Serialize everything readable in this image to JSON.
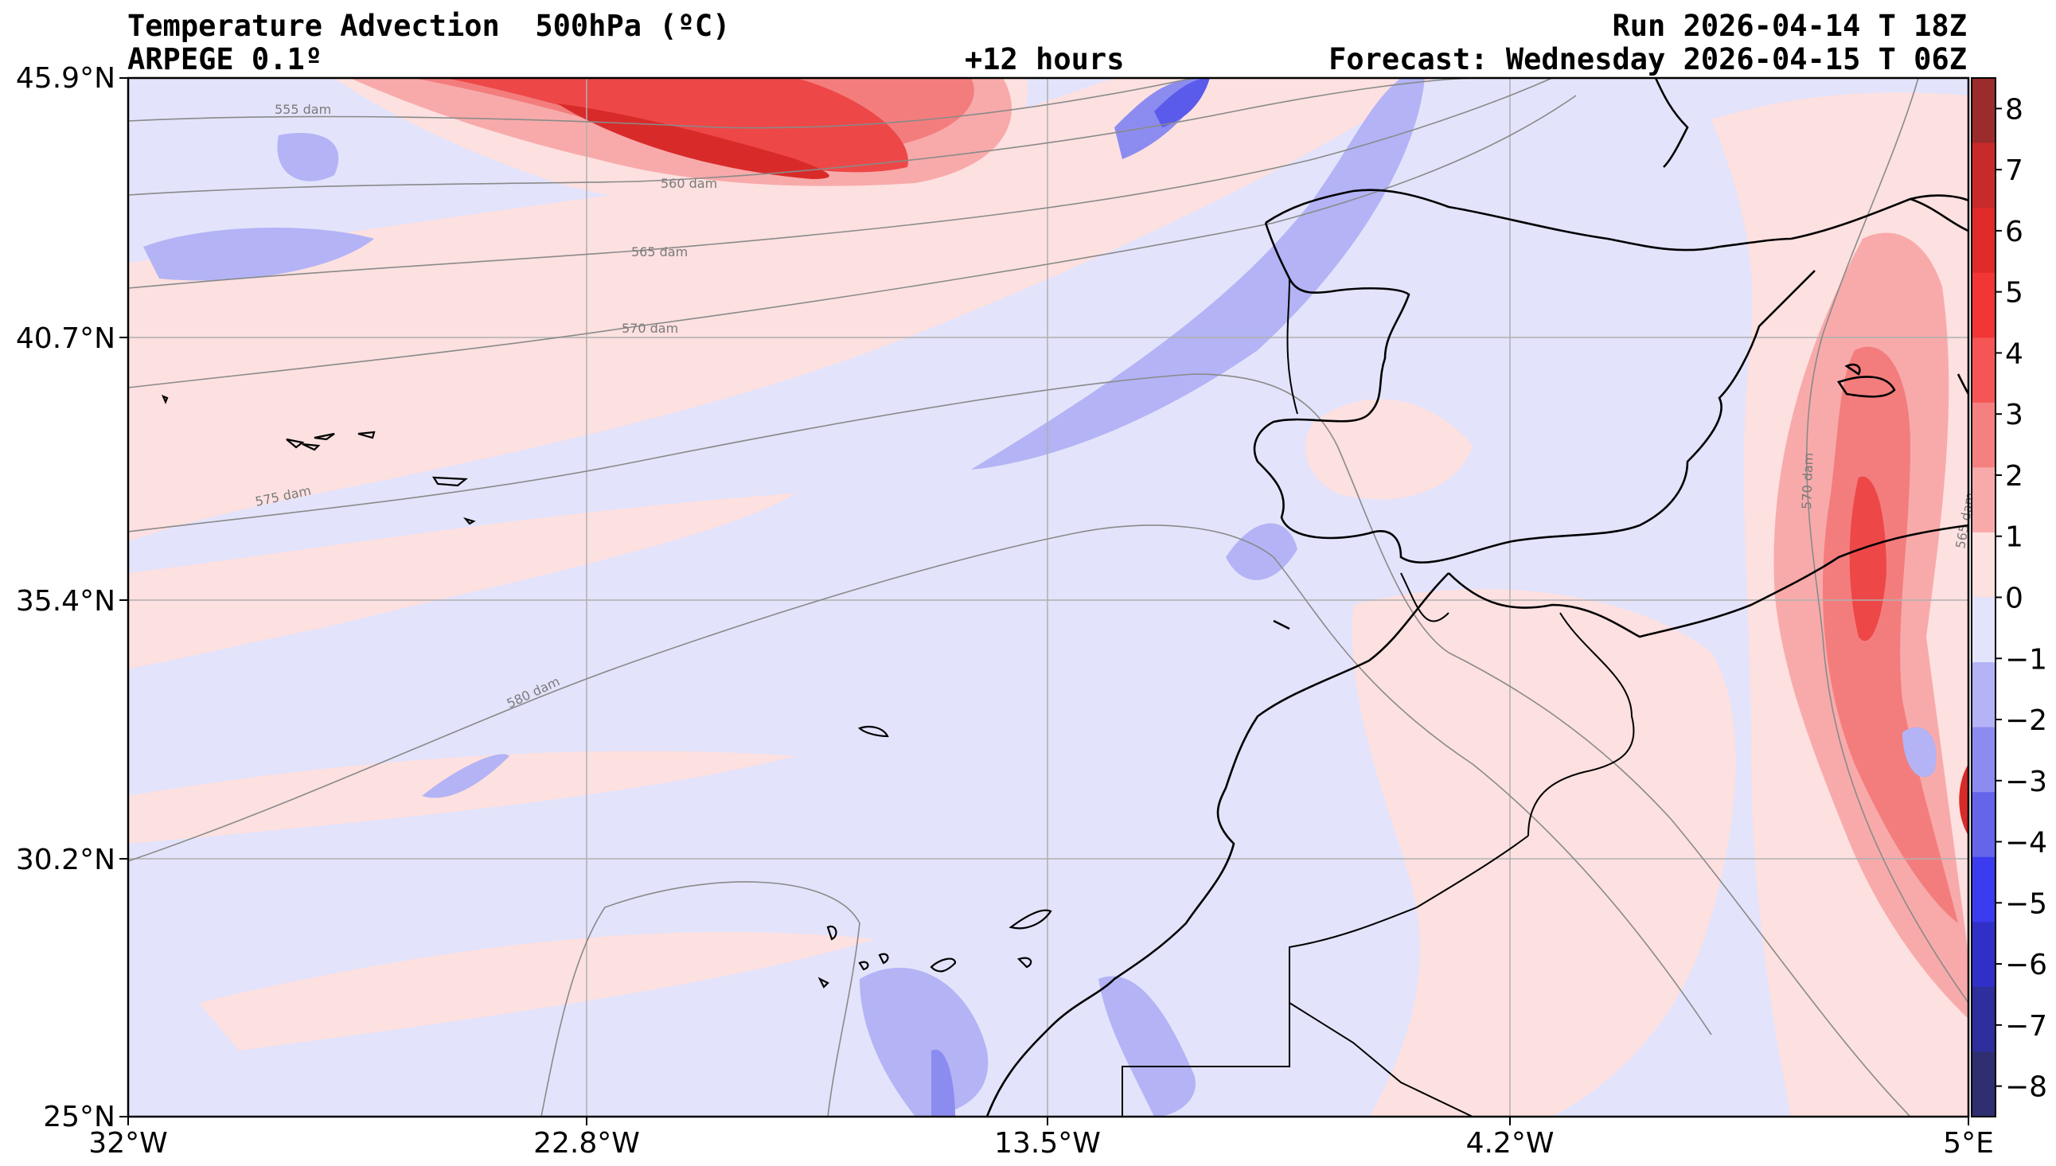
{
  "header": {
    "title": "Temperature Advection  500hPa (ºC)",
    "model": "ARPEGE 0.1º",
    "lead_time": "+12 hours",
    "run": "Run 2026-04-14 T 18Z",
    "forecast": "Forecast: Wednesday 2026-04-15 T 06Z"
  },
  "map": {
    "lat_labels": [
      "45.9°N",
      "40.7°N",
      "35.4°N",
      "30.2°N",
      "25°N"
    ],
    "lon_labels": [
      "32°W",
      "22.8°W",
      "13.5°W",
      "4.2°W",
      "5°E"
    ],
    "contour_labels": [
      "555 dam",
      "560 dam",
      "565 dam",
      "570 dam",
      "575 dam",
      "580 dam",
      "570 dam",
      "565 dam"
    ],
    "colors": {
      "neg1": "#e3e3fb",
      "neg2": "#b3b3f6",
      "neg3": "#8c8cf0",
      "neg4": "#5a5aeb",
      "pos1": "#fde0e0",
      "pos2": "#f8aaaa",
      "pos3": "#f37d7d",
      "pos4": "#ee4747",
      "pos5": "#d92a2a"
    }
  },
  "colorbar": {
    "ticks": [
      "8",
      "7",
      "6",
      "5",
      "4",
      "3",
      "2",
      "1",
      "0",
      "−1",
      "−2",
      "−3",
      "−4",
      "−5",
      "−6",
      "−7",
      "−8"
    ],
    "colors": [
      "#9b2c2c",
      "#c82a2a",
      "#e02a2a",
      "#f23535",
      "#f55555",
      "#f58080",
      "#f8aaaa",
      "#fde0e0",
      "#e3e3fb",
      "#b3b3f6",
      "#8c8cf0",
      "#6565eb",
      "#3b3bf0",
      "#3030c8",
      "#2e2e9c",
      "#2e2e70"
    ]
  }
}
